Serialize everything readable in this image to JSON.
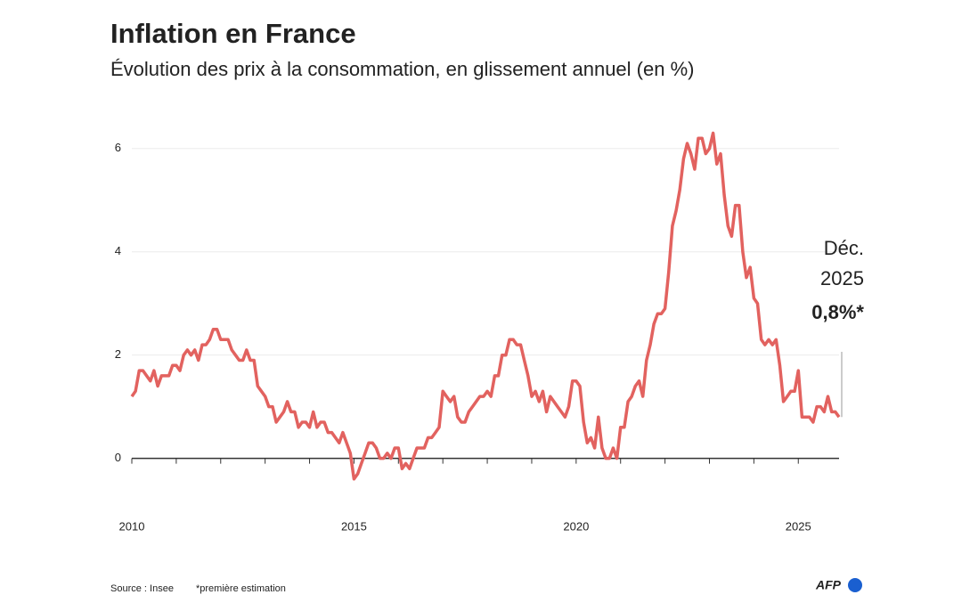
{
  "chart_data": {
    "type": "line",
    "title": "Inflation en France",
    "subtitle": "Évolution des prix à la consommation, en glissement annuel (en %)",
    "annotation": {
      "lines": [
        "Déc.",
        "2025"
      ],
      "value_label": "0,8%*"
    },
    "source": "Source : Insee",
    "note": "*première estimation",
    "logo": "AFP",
    "xlim": [
      2010,
      2025.917
    ],
    "xticks": [
      2010,
      2015,
      2020,
      2025
    ],
    "ylim": [
      -0.8,
      6.6
    ],
    "yticks": [
      0,
      2,
      4,
      6
    ],
    "grid": true,
    "x": [
      2010,
      2010.083,
      2010.167,
      2010.25,
      2010.333,
      2010.417,
      2010.5,
      2010.583,
      2010.667,
      2010.75,
      2010.833,
      2010.917,
      2011,
      2011.083,
      2011.167,
      2011.25,
      2011.333,
      2011.417,
      2011.5,
      2011.583,
      2011.667,
      2011.75,
      2011.833,
      2011.917,
      2012,
      2012.083,
      2012.167,
      2012.25,
      2012.333,
      2012.417,
      2012.5,
      2012.583,
      2012.667,
      2012.75,
      2012.833,
      2012.917,
      2013,
      2013.083,
      2013.167,
      2013.25,
      2013.333,
      2013.417,
      2013.5,
      2013.583,
      2013.667,
      2013.75,
      2013.833,
      2013.917,
      2014,
      2014.083,
      2014.167,
      2014.25,
      2014.333,
      2014.417,
      2014.5,
      2014.583,
      2014.667,
      2014.75,
      2014.833,
      2014.917,
      2015,
      2015.083,
      2015.167,
      2015.25,
      2015.333,
      2015.417,
      2015.5,
      2015.583,
      2015.667,
      2015.75,
      2015.833,
      2015.917,
      2016,
      2016.083,
      2016.167,
      2016.25,
      2016.333,
      2016.417,
      2016.5,
      2016.583,
      2016.667,
      2016.75,
      2016.833,
      2016.917,
      2017,
      2017.083,
      2017.167,
      2017.25,
      2017.333,
      2017.417,
      2017.5,
      2017.583,
      2017.667,
      2017.75,
      2017.833,
      2017.917,
      2018,
      2018.083,
      2018.167,
      2018.25,
      2018.333,
      2018.417,
      2018.5,
      2018.583,
      2018.667,
      2018.75,
      2018.833,
      2018.917,
      2019,
      2019.083,
      2019.167,
      2019.25,
      2019.333,
      2019.417,
      2019.5,
      2019.583,
      2019.667,
      2019.75,
      2019.833,
      2019.917,
      2020,
      2020.083,
      2020.167,
      2020.25,
      2020.333,
      2020.417,
      2020.5,
      2020.583,
      2020.667,
      2020.75,
      2020.833,
      2020.917,
      2021,
      2021.083,
      2021.167,
      2021.25,
      2021.333,
      2021.417,
      2021.5,
      2021.583,
      2021.667,
      2021.75,
      2021.833,
      2021.917,
      2022,
      2022.083,
      2022.167,
      2022.25,
      2022.333,
      2022.417,
      2022.5,
      2022.583,
      2022.667,
      2022.75,
      2022.833,
      2022.917,
      2023,
      2023.083,
      2023.167,
      2023.25,
      2023.333,
      2023.417,
      2023.5,
      2023.583,
      2023.667,
      2023.75,
      2023.833,
      2023.917,
      2024,
      2024.083,
      2024.167,
      2024.25,
      2024.333,
      2024.417,
      2024.5,
      2024.583,
      2024.667,
      2024.75,
      2024.833,
      2024.917,
      2025,
      2025.083,
      2025.167,
      2025.25,
      2025.333,
      2025.417,
      2025.5,
      2025.583,
      2025.667,
      2025.75,
      2025.833,
      2025.917
    ],
    "series": [
      {
        "name": "Inflation",
        "color": "#e2625f",
        "values": [
          1.2,
          1.3,
          1.7,
          1.7,
          1.6,
          1.5,
          1.7,
          1.4,
          1.6,
          1.6,
          1.6,
          1.8,
          1.8,
          1.7,
          2.0,
          2.1,
          2.0,
          2.1,
          1.9,
          2.2,
          2.2,
          2.3,
          2.5,
          2.5,
          2.3,
          2.3,
          2.3,
          2.1,
          2.0,
          1.9,
          1.9,
          2.1,
          1.9,
          1.9,
          1.4,
          1.3,
          1.2,
          1.0,
          1.0,
          0.7,
          0.8,
          0.9,
          1.1,
          0.9,
          0.9,
          0.6,
          0.7,
          0.7,
          0.6,
          0.9,
          0.6,
          0.7,
          0.7,
          0.5,
          0.5,
          0.4,
          0.3,
          0.5,
          0.3,
          0.1,
          -0.4,
          -0.3,
          -0.1,
          0.1,
          0.3,
          0.3,
          0.2,
          0.0,
          0.0,
          0.1,
          0.0,
          0.2,
          0.2,
          -0.2,
          -0.1,
          -0.2,
          0.0,
          0.2,
          0.2,
          0.2,
          0.4,
          0.4,
          0.5,
          0.6,
          1.3,
          1.2,
          1.1,
          1.2,
          0.8,
          0.7,
          0.7,
          0.9,
          1.0,
          1.1,
          1.2,
          1.2,
          1.3,
          1.2,
          1.6,
          1.6,
          2.0,
          2.0,
          2.3,
          2.3,
          2.2,
          2.2,
          1.9,
          1.6,
          1.2,
          1.3,
          1.1,
          1.3,
          0.9,
          1.2,
          1.1,
          1.0,
          0.9,
          0.8,
          1.0,
          1.5,
          1.5,
          1.4,
          0.7,
          0.3,
          0.4,
          0.2,
          0.8,
          0.2,
          0.0,
          0.0,
          0.2,
          0.0,
          0.6,
          0.6,
          1.1,
          1.2,
          1.4,
          1.5,
          1.2,
          1.9,
          2.2,
          2.6,
          2.8,
          2.8,
          2.9,
          3.6,
          4.5,
          4.8,
          5.2,
          5.8,
          6.1,
          5.9,
          5.6,
          6.2,
          6.2,
          5.9,
          6.0,
          6.3,
          5.7,
          5.9,
          5.1,
          4.5,
          4.3,
          4.9,
          4.9,
          4.0,
          3.5,
          3.7,
          3.1,
          3.0,
          2.3,
          2.2,
          2.3,
          2.2,
          2.3,
          1.8,
          1.1,
          1.2,
          1.3,
          1.3,
          1.7,
          0.8,
          0.8,
          0.8,
          0.7,
          1.0,
          1.0,
          0.9,
          1.2,
          0.9,
          0.9,
          0.8
        ]
      }
    ]
  }
}
